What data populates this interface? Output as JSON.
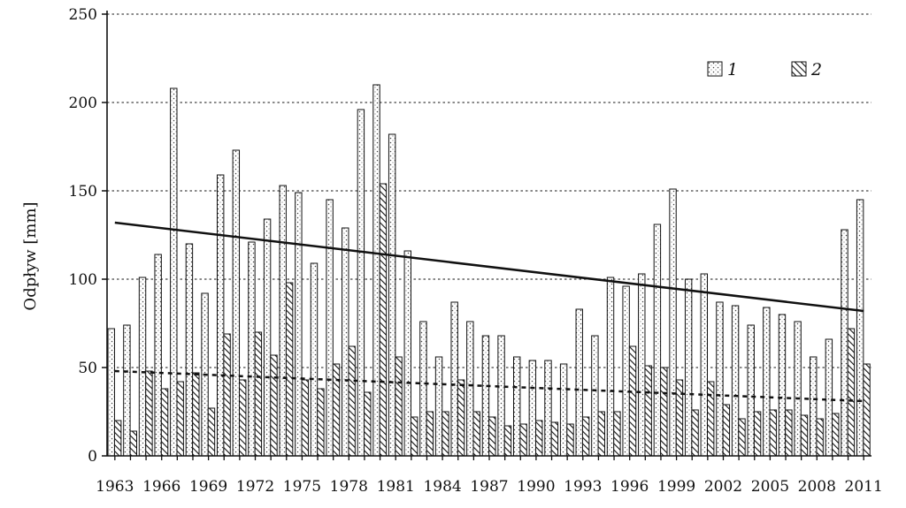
{
  "chart_data": {
    "type": "bar",
    "title": "",
    "xlabel": "",
    "ylabel": "Odpływ [mm]",
    "ylim": [
      0,
      250
    ],
    "yticks": [
      0,
      50,
      100,
      150,
      200,
      250
    ],
    "grid": "horizontal dotted",
    "legend_position": "top-right",
    "x": [
      1963,
      1964,
      1965,
      1966,
      1967,
      1968,
      1969,
      1970,
      1971,
      1972,
      1973,
      1974,
      1975,
      1976,
      1977,
      1978,
      1979,
      1980,
      1981,
      1982,
      1983,
      1984,
      1985,
      1986,
      1987,
      1988,
      1989,
      1990,
      1991,
      1992,
      1993,
      1994,
      1995,
      1996,
      1997,
      1998,
      1999,
      2000,
      2001,
      2002,
      2003,
      2004,
      2005,
      2006,
      2007,
      2008,
      2009,
      2010,
      2011
    ],
    "xtick_labels": [
      "1963",
      "1966",
      "1969",
      "1972",
      "1975",
      "1978",
      "1981",
      "1984",
      "1987",
      "1990",
      "1993",
      "1996",
      "1999",
      "2002",
      "2005",
      "2008",
      "2011"
    ],
    "series": [
      {
        "name": "1",
        "pattern": "dotted",
        "values": [
          72,
          74,
          101,
          114,
          208,
          120,
          92,
          159,
          173,
          121,
          134,
          153,
          149,
          109,
          145,
          129,
          196,
          210,
          182,
          116,
          76,
          56,
          87,
          76,
          68,
          68,
          56,
          54,
          54,
          52,
          83,
          68,
          101,
          96,
          103,
          131,
          151,
          100,
          103,
          87,
          85,
          74,
          84,
          80,
          76,
          56,
          66,
          128,
          145
        ]
      },
      {
        "name": "2",
        "pattern": "hatched",
        "values": [
          20,
          14,
          48,
          38,
          42,
          47,
          27,
          69,
          43,
          70,
          57,
          98,
          43,
          38,
          52,
          62,
          36,
          154,
          56,
          22,
          25,
          25,
          43,
          25,
          22,
          17,
          18,
          20,
          19,
          18,
          22,
          25,
          25,
          62,
          51,
          50,
          43,
          26,
          42,
          29,
          21,
          25,
          26,
          26,
          23,
          21,
          24,
          72,
          52
        ]
      }
    ],
    "trend_lines": [
      {
        "series": "1",
        "style": "solid",
        "x": [
          1963,
          2011
        ],
        "y": [
          132,
          82
        ]
      },
      {
        "series": "2",
        "style": "dashed",
        "x": [
          1963,
          2011
        ],
        "y": [
          48,
          31
        ]
      }
    ],
    "colors": {
      "axis": "#111111",
      "bar_fill": "#ffffff",
      "grid": "#444444"
    }
  }
}
